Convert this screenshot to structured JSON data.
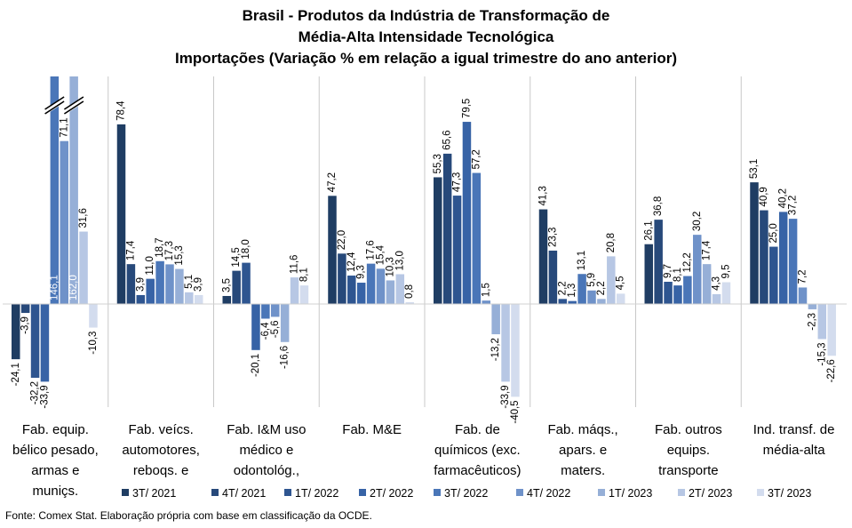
{
  "chart_data": {
    "type": "bar",
    "title_lines": [
      "Brasil - Produtos da Indústria de Transformação de",
      "Média-Alta Intensidade Tecnológica",
      "Importações (Variação % em relação a igual trimestre do ano anterior)"
    ],
    "categories": [
      [
        "Fab. equip.",
        "bélico pesado,",
        "armas e",
        "muniçs."
      ],
      [
        "Fab. veícs.",
        "automotores,",
        "reboqs. e"
      ],
      [
        "Fab. I&M uso",
        "médico e",
        "odontológ.,"
      ],
      [
        "Fab. M&E"
      ],
      [
        "Fab. de",
        "químicos (exc.",
        "farmacêuticos)"
      ],
      [
        "Fab. máqs.,",
        "apars. e",
        "maters."
      ],
      [
        "Fab. outros",
        "equips.",
        "transporte"
      ],
      [
        "Ind. transf. de",
        "média-alta"
      ]
    ],
    "series": [
      {
        "name": "3T/ 2021",
        "color": "#1f3d63",
        "values": [
          -24.1,
          78.4,
          3.5,
          47.2,
          55.3,
          41.3,
          26.1,
          53.1
        ]
      },
      {
        "name": "4T/ 2021",
        "color": "#27497a",
        "values": [
          -3.9,
          17.4,
          14.5,
          22.0,
          65.6,
          23.3,
          36.8,
          40.9
        ]
      },
      {
        "name": "1T/ 2022",
        "color": "#2e5590",
        "values": [
          -32.2,
          3.9,
          18.0,
          12.4,
          47.3,
          2.2,
          9.7,
          25.0
        ]
      },
      {
        "name": "2T/ 2022",
        "color": "#3763a6",
        "values": [
          -33.9,
          11.0,
          -20.1,
          9.3,
          79.5,
          1.3,
          8.1,
          40.2
        ]
      },
      {
        "name": "3T/ 2022",
        "color": "#4a76b8",
        "values": [
          146.1,
          18.7,
          -6.4,
          17.6,
          57.2,
          13.1,
          12.2,
          37.2
        ]
      },
      {
        "name": "4T/ 2022",
        "color": "#6f92c9",
        "values": [
          71.1,
          17.3,
          -5.6,
          15.4,
          1.5,
          5.9,
          30.2,
          7.2
        ]
      },
      {
        "name": "1T/ 2023",
        "color": "#96afd7",
        "values": [
          162.0,
          15.3,
          -16.6,
          10.3,
          -13.2,
          2.2,
          17.4,
          -2.3
        ]
      },
      {
        "name": "2T/ 2023",
        "color": "#b7c7e4",
        "values": [
          31.6,
          5.1,
          11.6,
          13.0,
          -33.9,
          20.8,
          4.3,
          -15.3
        ]
      },
      {
        "name": "3T/ 2023",
        "color": "#d3dcee",
        "values": [
          -10.3,
          3.9,
          8.1,
          0.8,
          -40.5,
          4.5,
          9.5,
          -22.6
        ]
      }
    ],
    "value_labels": [
      [
        "-24,1",
        "78,4",
        "3,5",
        "47,2",
        "55,3",
        "41,3",
        "26,1",
        "53,1"
      ],
      [
        "-3,9",
        "17,4",
        "14,5",
        "22,0",
        "65,6",
        "23,3",
        "36,8",
        "40,9"
      ],
      [
        "-32,2",
        "3,9",
        "18,0",
        "12,4",
        "47,3",
        "2,2",
        "9,7",
        "25,0"
      ],
      [
        "-33,9",
        "11,0",
        "-20,1",
        "9,3",
        "79,5",
        "1,3",
        "8,1",
        "40,2"
      ],
      [
        "146,1",
        "18,7",
        "-6,4",
        "17,6",
        "57,2",
        "13,1",
        "12,2",
        "37,2"
      ],
      [
        "71,1",
        "17,3",
        "-5,6",
        "15,4",
        "1,5",
        "5,9",
        "30,2",
        "7,2"
      ],
      [
        "162,0",
        "15,3",
        "-16,6",
        "10,3",
        "-13,2",
        "2,2",
        "17,4",
        "-2,3"
      ],
      [
        "31,6",
        "5,1",
        "11,6",
        "13,0",
        "-33,9",
        "20,8",
        "4,3",
        "-15,3"
      ],
      [
        "-10,3",
        "3,9",
        "8,1",
        "0,8",
        "-40,5",
        "4,5",
        "9,5",
        "-22,6"
      ]
    ],
    "ylim": [
      -45,
      96
    ],
    "axis_break": true,
    "legend_position": "bottom",
    "grid": false
  },
  "source_note": "Fonte: Comex Stat. Elaboração própria com base em classificação da OCDE."
}
